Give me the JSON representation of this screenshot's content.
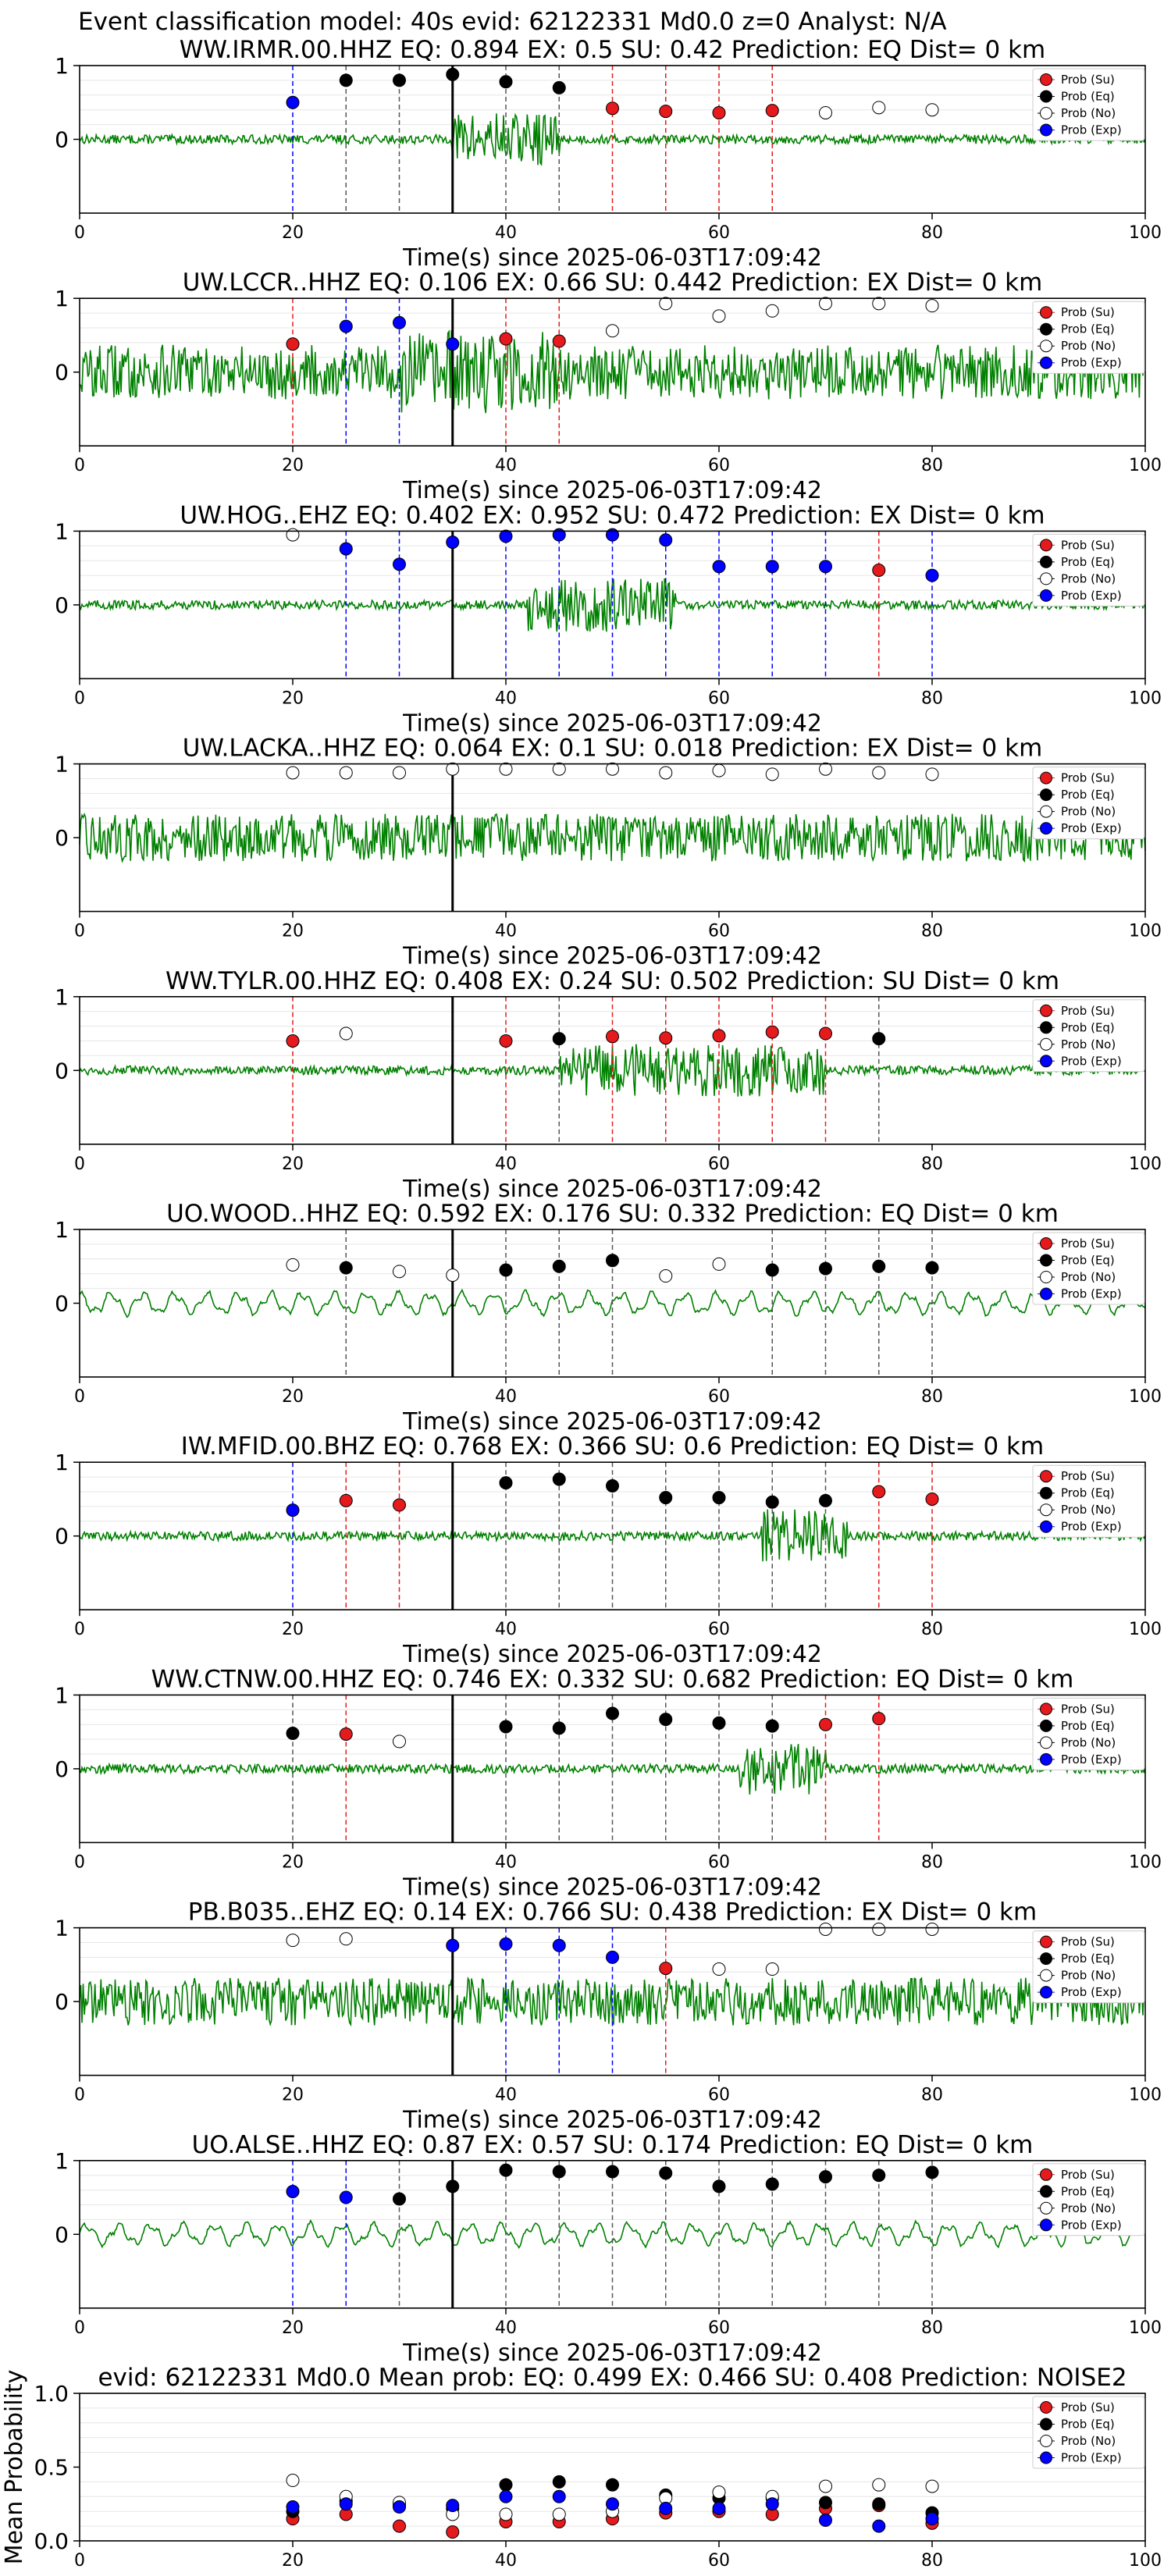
{
  "figure_title": "Event classification model: 40s evid: 62122331 Md0.0 z=0 Analyst: N/A",
  "legend_entries": [
    {
      "label": "Prob (Su)",
      "color": "#e41a1c",
      "fill": true
    },
    {
      "label": "Prob (Eq)",
      "color": "#000000",
      "fill": true
    },
    {
      "label": "Prob (No)",
      "color": "#ffffff",
      "fill": false
    },
    {
      "label": "Prob (Exp)",
      "color": "#0000ff",
      "fill": true
    }
  ],
  "colors": {
    "su": "#e41a1c",
    "eq": "#000000",
    "no": "#ffffff",
    "exp": "#0000ff",
    "waveform": "#008000",
    "pick_line": "#000000"
  },
  "shared_xlabel": "Time(s) since 2025-06-03T17:09:42",
  "chart_data": [
    {
      "type": "scatter",
      "title": "WW.IRMR.00.HHZ   EQ: 0.894  EX: 0.5  SU: 0.42   Prediction: EQ    Dist= 0 km",
      "xlabel": "Time(s) since 2025-06-03T17:09:42",
      "xlim": [
        0,
        100
      ],
      "ylim": [
        -1,
        1
      ],
      "xticks": [
        0,
        20,
        40,
        60,
        80,
        100
      ],
      "yticks": [
        0,
        1
      ],
      "pick_time": 35,
      "waveform": {
        "amplitude": "low",
        "burst": [
          35,
          45
        ]
      },
      "points": [
        {
          "t": 20,
          "p": 0.5,
          "c": "exp"
        },
        {
          "t": 25,
          "p": 0.8,
          "c": "eq"
        },
        {
          "t": 30,
          "p": 0.8,
          "c": "eq"
        },
        {
          "t": 35,
          "p": 0.88,
          "c": "eq"
        },
        {
          "t": 40,
          "p": 0.78,
          "c": "eq"
        },
        {
          "t": 45,
          "p": 0.7,
          "c": "eq"
        },
        {
          "t": 50,
          "p": 0.42,
          "c": "su"
        },
        {
          "t": 55,
          "p": 0.38,
          "c": "su"
        },
        {
          "t": 60,
          "p": 0.36,
          "c": "su"
        },
        {
          "t": 65,
          "p": 0.39,
          "c": "su"
        },
        {
          "t": 70,
          "p": 0.36,
          "c": "no"
        },
        {
          "t": 75,
          "p": 0.43,
          "c": "no"
        },
        {
          "t": 80,
          "p": 0.4,
          "c": "no"
        }
      ]
    },
    {
      "type": "scatter",
      "title": "UW.LCCR..HHZ   EQ: 0.106  EX: 0.66  SU: 0.442   Prediction: EX    Dist= 0 km",
      "xlabel": "Time(s) since 2025-06-03T17:09:42",
      "xlim": [
        0,
        100
      ],
      "ylim": [
        -1,
        1
      ],
      "xticks": [
        0,
        20,
        40,
        60,
        80,
        100
      ],
      "yticks": [
        0,
        1
      ],
      "pick_time": 35,
      "waveform": {
        "amplitude": "high",
        "burst": [
          30,
          45
        ]
      },
      "points": [
        {
          "t": 20,
          "p": 0.38,
          "c": "su"
        },
        {
          "t": 25,
          "p": 0.62,
          "c": "exp"
        },
        {
          "t": 30,
          "p": 0.67,
          "c": "exp"
        },
        {
          "t": 35,
          "p": 0.38,
          "c": "exp"
        },
        {
          "t": 40,
          "p": 0.45,
          "c": "su"
        },
        {
          "t": 45,
          "p": 0.42,
          "c": "su"
        },
        {
          "t": 50,
          "p": 0.56,
          "c": "no"
        },
        {
          "t": 55,
          "p": 0.93,
          "c": "no"
        },
        {
          "t": 60,
          "p": 0.76,
          "c": "no"
        },
        {
          "t": 65,
          "p": 0.83,
          "c": "no"
        },
        {
          "t": 70,
          "p": 0.93,
          "c": "no"
        },
        {
          "t": 75,
          "p": 0.93,
          "c": "no"
        },
        {
          "t": 80,
          "p": 0.9,
          "c": "no"
        }
      ]
    },
    {
      "type": "scatter",
      "title": "UW.HOG..EHZ   EQ: 0.402  EX: 0.952  SU: 0.472   Prediction: EX    Dist= 0 km",
      "xlabel": "Time(s) since 2025-06-03T17:09:42",
      "xlim": [
        0,
        100
      ],
      "ylim": [
        -1,
        1
      ],
      "xticks": [
        0,
        20,
        40,
        60,
        80,
        100
      ],
      "yticks": [
        0,
        1
      ],
      "pick_time": 35,
      "waveform": {
        "amplitude": "low",
        "burst": [
          42,
          56
        ]
      },
      "points": [
        {
          "t": 20,
          "p": 0.95,
          "c": "no"
        },
        {
          "t": 25,
          "p": 0.76,
          "c": "exp"
        },
        {
          "t": 30,
          "p": 0.55,
          "c": "exp"
        },
        {
          "t": 35,
          "p": 0.85,
          "c": "exp"
        },
        {
          "t": 40,
          "p": 0.93,
          "c": "exp"
        },
        {
          "t": 45,
          "p": 0.95,
          "c": "exp"
        },
        {
          "t": 50,
          "p": 0.95,
          "c": "exp"
        },
        {
          "t": 55,
          "p": 0.88,
          "c": "exp"
        },
        {
          "t": 60,
          "p": 0.52,
          "c": "exp"
        },
        {
          "t": 65,
          "p": 0.52,
          "c": "exp"
        },
        {
          "t": 70,
          "p": 0.52,
          "c": "exp"
        },
        {
          "t": 75,
          "p": 0.47,
          "c": "su"
        },
        {
          "t": 80,
          "p": 0.4,
          "c": "exp"
        }
      ]
    },
    {
      "type": "scatter",
      "title": "UW.LACKA..HHZ   EQ: 0.064  EX: 0.1  SU: 0.018   Prediction: EX    Dist= 0 km",
      "xlabel": "Time(s) since 2025-06-03T17:09:42",
      "xlim": [
        0,
        100
      ],
      "ylim": [
        -1,
        1
      ],
      "xticks": [
        0,
        20,
        40,
        60,
        80,
        100
      ],
      "yticks": [
        0,
        1
      ],
      "pick_time": 35,
      "waveform": {
        "amplitude": "medium",
        "burst": [
          0,
          100
        ]
      },
      "points": [
        {
          "t": 20,
          "p": 0.88,
          "c": "no"
        },
        {
          "t": 25,
          "p": 0.88,
          "c": "no"
        },
        {
          "t": 30,
          "p": 0.88,
          "c": "no"
        },
        {
          "t": 35,
          "p": 0.93,
          "c": "no"
        },
        {
          "t": 40,
          "p": 0.93,
          "c": "no"
        },
        {
          "t": 45,
          "p": 0.93,
          "c": "no"
        },
        {
          "t": 50,
          "p": 0.93,
          "c": "no"
        },
        {
          "t": 55,
          "p": 0.88,
          "c": "no"
        },
        {
          "t": 60,
          "p": 0.91,
          "c": "no"
        },
        {
          "t": 65,
          "p": 0.86,
          "c": "no"
        },
        {
          "t": 70,
          "p": 0.93,
          "c": "no"
        },
        {
          "t": 75,
          "p": 0.88,
          "c": "no"
        },
        {
          "t": 80,
          "p": 0.86,
          "c": "no"
        }
      ]
    },
    {
      "type": "scatter",
      "title": "WW.TYLR.00.HHZ   EQ: 0.408  EX: 0.24  SU: 0.502   Prediction: SU    Dist= 0 km",
      "xlabel": "Time(s) since 2025-06-03T17:09:42",
      "xlim": [
        0,
        100
      ],
      "ylim": [
        -1,
        1
      ],
      "xticks": [
        0,
        20,
        40,
        60,
        80,
        100
      ],
      "yticks": [
        0,
        1
      ],
      "pick_time": 35,
      "waveform": {
        "amplitude": "low",
        "burst": [
          45,
          70
        ]
      },
      "points": [
        {
          "t": 20,
          "p": 0.4,
          "c": "su"
        },
        {
          "t": 25,
          "p": 0.5,
          "c": "no"
        },
        {
          "t": 40,
          "p": 0.4,
          "c": "su"
        },
        {
          "t": 45,
          "p": 0.43,
          "c": "eq"
        },
        {
          "t": 50,
          "p": 0.46,
          "c": "su"
        },
        {
          "t": 55,
          "p": 0.44,
          "c": "su"
        },
        {
          "t": 60,
          "p": 0.47,
          "c": "su"
        },
        {
          "t": 65,
          "p": 0.52,
          "c": "su"
        },
        {
          "t": 70,
          "p": 0.5,
          "c": "su"
        },
        {
          "t": 75,
          "p": 0.43,
          "c": "eq"
        }
      ]
    },
    {
      "type": "scatter",
      "title": "UO.WOOD..HHZ   EQ: 0.592  EX: 0.176  SU: 0.332   Prediction: EQ    Dist= 0 km",
      "xlabel": "Time(s) since 2025-06-03T17:09:42",
      "xlim": [
        0,
        100
      ],
      "ylim": [
        -1,
        1
      ],
      "xticks": [
        0,
        20,
        40,
        60,
        80,
        100
      ],
      "yticks": [
        0,
        1
      ],
      "pick_time": 35,
      "waveform": {
        "amplitude": "wavy",
        "burst": [
          0,
          0
        ]
      },
      "points": [
        {
          "t": 20,
          "p": 0.52,
          "c": "no"
        },
        {
          "t": 25,
          "p": 0.48,
          "c": "eq"
        },
        {
          "t": 30,
          "p": 0.43,
          "c": "no"
        },
        {
          "t": 35,
          "p": 0.38,
          "c": "no"
        },
        {
          "t": 40,
          "p": 0.45,
          "c": "eq"
        },
        {
          "t": 45,
          "p": 0.5,
          "c": "eq"
        },
        {
          "t": 50,
          "p": 0.58,
          "c": "eq"
        },
        {
          "t": 55,
          "p": 0.37,
          "c": "no"
        },
        {
          "t": 60,
          "p": 0.53,
          "c": "no"
        },
        {
          "t": 65,
          "p": 0.45,
          "c": "eq"
        },
        {
          "t": 70,
          "p": 0.47,
          "c": "eq"
        },
        {
          "t": 75,
          "p": 0.5,
          "c": "eq"
        },
        {
          "t": 80,
          "p": 0.48,
          "c": "eq"
        }
      ]
    },
    {
      "type": "scatter",
      "title": "IW.MFID.00.BHZ   EQ: 0.768  EX: 0.366  SU: 0.6   Prediction: EQ    Dist= 0 km",
      "xlabel": "Time(s) since 2025-06-03T17:09:42",
      "xlim": [
        0,
        100
      ],
      "ylim": [
        -1,
        1
      ],
      "xticks": [
        0,
        20,
        40,
        60,
        80,
        100
      ],
      "yticks": [
        0,
        1
      ],
      "pick_time": 35,
      "waveform": {
        "amplitude": "low",
        "burst": [
          64,
          72
        ]
      },
      "points": [
        {
          "t": 20,
          "p": 0.35,
          "c": "exp"
        },
        {
          "t": 25,
          "p": 0.48,
          "c": "su"
        },
        {
          "t": 30,
          "p": 0.42,
          "c": "su"
        },
        {
          "t": 40,
          "p": 0.72,
          "c": "eq"
        },
        {
          "t": 45,
          "p": 0.77,
          "c": "eq"
        },
        {
          "t": 50,
          "p": 0.68,
          "c": "eq"
        },
        {
          "t": 55,
          "p": 0.52,
          "c": "eq"
        },
        {
          "t": 60,
          "p": 0.52,
          "c": "eq"
        },
        {
          "t": 65,
          "p": 0.46,
          "c": "eq"
        },
        {
          "t": 70,
          "p": 0.48,
          "c": "eq"
        },
        {
          "t": 75,
          "p": 0.6,
          "c": "su"
        },
        {
          "t": 80,
          "p": 0.5,
          "c": "su"
        }
      ]
    },
    {
      "type": "scatter",
      "title": "WW.CTNW.00.HHZ   EQ: 0.746  EX: 0.332  SU: 0.682   Prediction: EQ    Dist= 0 km",
      "xlabel": "Time(s) since 2025-06-03T17:09:42",
      "xlim": [
        0,
        100
      ],
      "ylim": [
        -1,
        1
      ],
      "xticks": [
        0,
        20,
        40,
        60,
        80,
        100
      ],
      "yticks": [
        0,
        1
      ],
      "pick_time": 35,
      "waveform": {
        "amplitude": "low",
        "burst": [
          62,
          70
        ]
      },
      "points": [
        {
          "t": 20,
          "p": 0.48,
          "c": "eq"
        },
        {
          "t": 25,
          "p": 0.47,
          "c": "su"
        },
        {
          "t": 30,
          "p": 0.37,
          "c": "no"
        },
        {
          "t": 40,
          "p": 0.57,
          "c": "eq"
        },
        {
          "t": 45,
          "p": 0.55,
          "c": "eq"
        },
        {
          "t": 50,
          "p": 0.75,
          "c": "eq"
        },
        {
          "t": 55,
          "p": 0.67,
          "c": "eq"
        },
        {
          "t": 60,
          "p": 0.62,
          "c": "eq"
        },
        {
          "t": 65,
          "p": 0.58,
          "c": "eq"
        },
        {
          "t": 70,
          "p": 0.6,
          "c": "su"
        },
        {
          "t": 75,
          "p": 0.68,
          "c": "su"
        }
      ]
    },
    {
      "type": "scatter",
      "title": "PB.B035..EHZ   EQ: 0.14  EX: 0.766  SU: 0.438   Prediction: EX    Dist= 0 km",
      "xlabel": "Time(s) since 2025-06-03T17:09:42",
      "xlim": [
        0,
        100
      ],
      "ylim": [
        -1,
        1
      ],
      "xticks": [
        0,
        20,
        40,
        60,
        80,
        100
      ],
      "yticks": [
        0,
        1
      ],
      "pick_time": 35,
      "waveform": {
        "amplitude": "medium",
        "burst": [
          0,
          100
        ]
      },
      "points": [
        {
          "t": 20,
          "p": 0.83,
          "c": "no"
        },
        {
          "t": 25,
          "p": 0.85,
          "c": "no"
        },
        {
          "t": 35,
          "p": 0.76,
          "c": "exp"
        },
        {
          "t": 40,
          "p": 0.78,
          "c": "exp"
        },
        {
          "t": 45,
          "p": 0.76,
          "c": "exp"
        },
        {
          "t": 50,
          "p": 0.6,
          "c": "exp"
        },
        {
          "t": 55,
          "p": 0.45,
          "c": "su"
        },
        {
          "t": 60,
          "p": 0.44,
          "c": "no"
        },
        {
          "t": 65,
          "p": 0.44,
          "c": "no"
        },
        {
          "t": 70,
          "p": 0.98,
          "c": "no"
        },
        {
          "t": 75,
          "p": 0.98,
          "c": "no"
        },
        {
          "t": 80,
          "p": 0.98,
          "c": "no"
        }
      ]
    },
    {
      "type": "scatter",
      "title": "UO.ALSE..HHZ   EQ: 0.87  EX: 0.57  SU: 0.174   Prediction: EQ    Dist= 0 km",
      "xlabel": "Time(s) since 2025-06-03T17:09:42",
      "xlim": [
        0,
        100
      ],
      "ylim": [
        -1,
        1
      ],
      "xticks": [
        0,
        20,
        40,
        60,
        80,
        100
      ],
      "yticks": [
        0,
        1
      ],
      "pick_time": 35,
      "waveform": {
        "amplitude": "wavy",
        "burst": [
          0,
          0
        ]
      },
      "points": [
        {
          "t": 20,
          "p": 0.58,
          "c": "exp"
        },
        {
          "t": 25,
          "p": 0.5,
          "c": "exp"
        },
        {
          "t": 30,
          "p": 0.48,
          "c": "eq"
        },
        {
          "t": 35,
          "p": 0.65,
          "c": "eq"
        },
        {
          "t": 40,
          "p": 0.87,
          "c": "eq"
        },
        {
          "t": 45,
          "p": 0.85,
          "c": "eq"
        },
        {
          "t": 50,
          "p": 0.85,
          "c": "eq"
        },
        {
          "t": 55,
          "p": 0.83,
          "c": "eq"
        },
        {
          "t": 60,
          "p": 0.65,
          "c": "eq"
        },
        {
          "t": 65,
          "p": 0.68,
          "c": "eq"
        },
        {
          "t": 70,
          "p": 0.78,
          "c": "eq"
        },
        {
          "t": 75,
          "p": 0.8,
          "c": "eq"
        },
        {
          "t": 80,
          "p": 0.84,
          "c": "eq"
        }
      ]
    },
    {
      "type": "scatter",
      "title": "evid: 62122331  Md0.0   Mean prob:   EQ: 0.499  EX: 0.466  SU: 0.408   Prediction: NOISE2",
      "xlabel": "",
      "ylabel": "Mean Probability",
      "xlim": [
        0,
        100
      ],
      "ylim": [
        0,
        1
      ],
      "xticks": [
        0,
        20,
        40,
        60,
        80,
        100
      ],
      "yticks": [
        0.0,
        0.5,
        1.0
      ],
      "ytick_labels": [
        "0.0",
        "0.5",
        "1.0"
      ],
      "is_mean": true,
      "series": [
        {
          "c": "su",
          "t": [
            20,
            25,
            30,
            35,
            40,
            45,
            50,
            55,
            60,
            65,
            70,
            75,
            80
          ],
          "p": [
            0.15,
            0.18,
            0.1,
            0.06,
            0.13,
            0.13,
            0.15,
            0.19,
            0.2,
            0.18,
            0.22,
            0.24,
            0.12
          ]
        },
        {
          "c": "eq",
          "t": [
            20,
            25,
            30,
            35,
            40,
            45,
            50,
            55,
            60,
            65,
            70,
            75,
            80
          ],
          "p": [
            0.2,
            0.27,
            0.24,
            0.22,
            0.38,
            0.4,
            0.38,
            0.31,
            0.29,
            0.29,
            0.26,
            0.25,
            0.19
          ]
        },
        {
          "c": "no",
          "t": [
            20,
            25,
            30,
            35,
            40,
            45,
            50,
            55,
            60,
            65,
            70,
            75,
            80
          ],
          "p": [
            0.41,
            0.3,
            0.26,
            0.18,
            0.18,
            0.18,
            0.2,
            0.29,
            0.33,
            0.3,
            0.37,
            0.38,
            0.37
          ]
        },
        {
          "c": "exp",
          "t": [
            20,
            25,
            30,
            35,
            40,
            45,
            50,
            55,
            60,
            65,
            70,
            75,
            80
          ],
          "p": [
            0.23,
            0.25,
            0.23,
            0.24,
            0.3,
            0.3,
            0.25,
            0.22,
            0.22,
            0.25,
            0.14,
            0.1,
            0.15
          ]
        }
      ]
    }
  ]
}
